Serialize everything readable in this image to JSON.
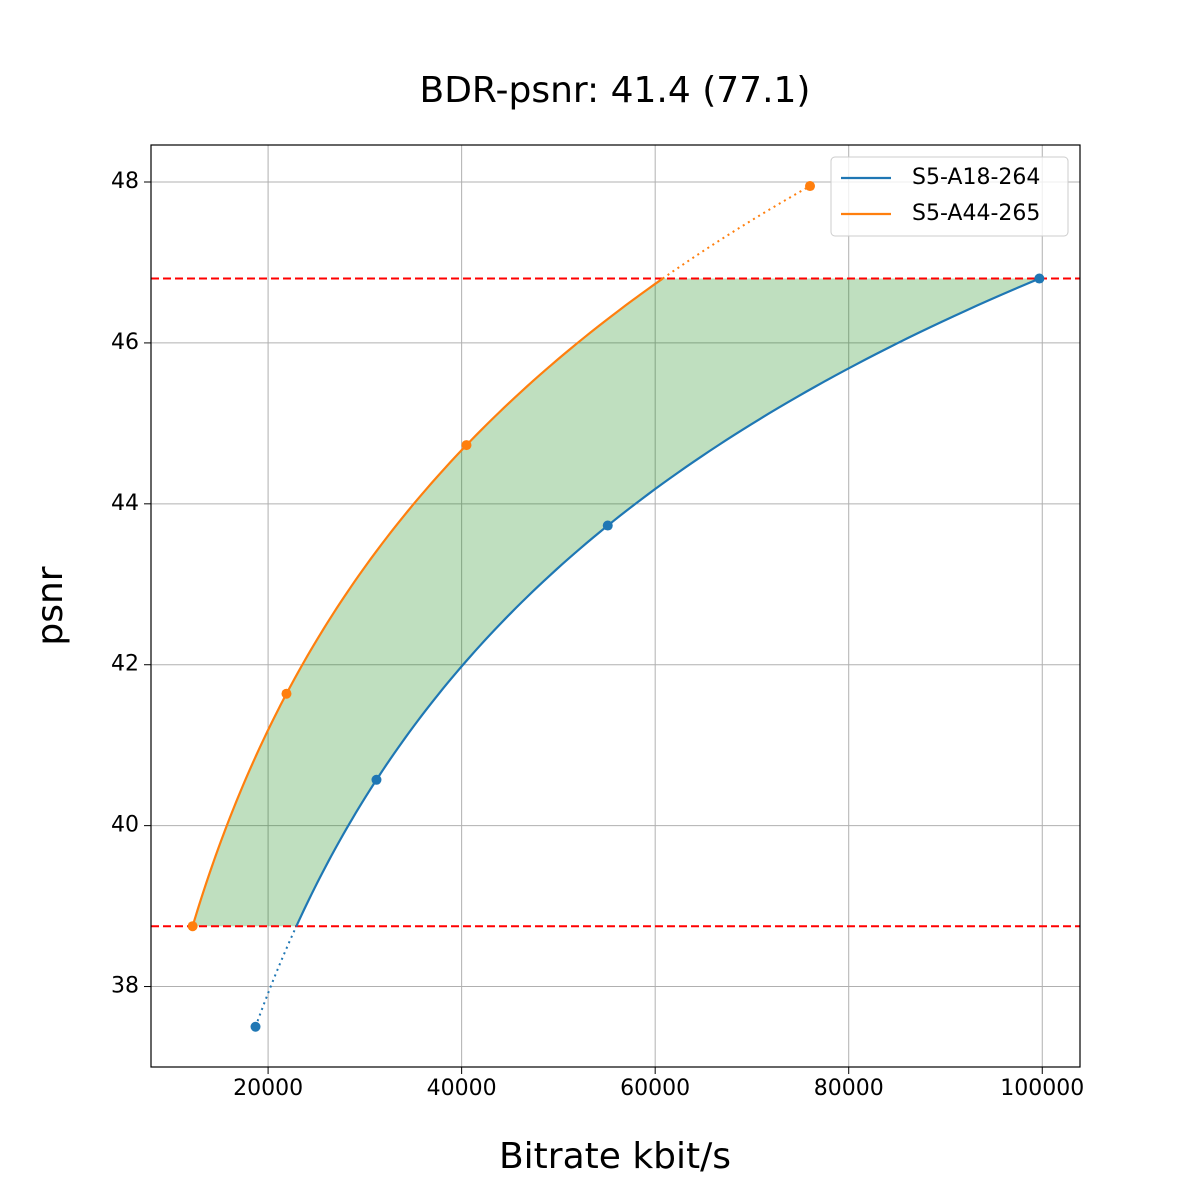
{
  "chart_data": {
    "type": "line",
    "title": "BDR-psnr: 41.4 (77.1)",
    "xlabel": "Bitrate kbit/s",
    "ylabel": "psnr",
    "series": [
      {
        "name": "S5-A18-264",
        "color": "#1f77b4",
        "x": [
          18700,
          31200,
          55100,
          99700
        ],
        "values": [
          37.5,
          40.57,
          43.73,
          46.8
        ]
      },
      {
        "name": "S5-A44-265",
        "color": "#ff7f0e",
        "x": [
          12200,
          21900,
          40500,
          76000
        ],
        "values": [
          38.75,
          41.64,
          44.73,
          47.95
        ]
      }
    ],
    "xlim": [
      7900,
      103900
    ],
    "ylim": [
      37.0,
      48.46
    ],
    "xticks": [
      20000,
      40000,
      60000,
      80000,
      100000
    ],
    "yticks": [
      38,
      40,
      42,
      44,
      46,
      48
    ],
    "grid": true,
    "legend": "upper right",
    "fill_color": "green",
    "reference_line_color": "red"
  }
}
